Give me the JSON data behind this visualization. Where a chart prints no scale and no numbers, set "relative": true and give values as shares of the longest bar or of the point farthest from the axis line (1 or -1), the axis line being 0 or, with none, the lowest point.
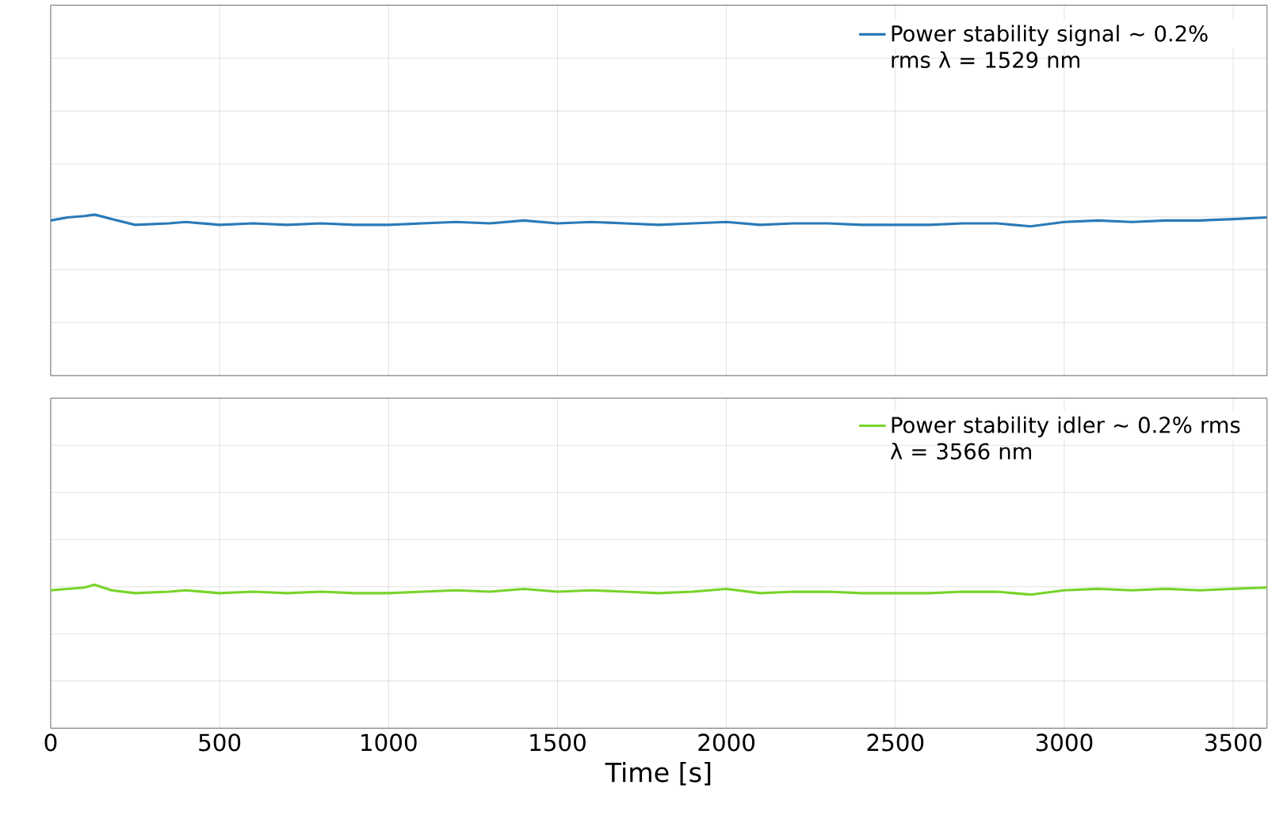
{
  "chart_data": [
    {
      "type": "line",
      "relative": true,
      "xlim": [
        0,
        3600
      ],
      "xticks": [
        0,
        500,
        1000,
        1500,
        2000,
        2500,
        3000,
        3500
      ],
      "grid": true,
      "legend": "top right",
      "tick_labels": false,
      "x": [
        0,
        50,
        100,
        130,
        180,
        250,
        350,
        400,
        500,
        600,
        700,
        800,
        900,
        1000,
        1100,
        1200,
        1300,
        1400,
        1500,
        1600,
        1700,
        1800,
        1900,
        2000,
        2100,
        2200,
        2300,
        2400,
        2500,
        2600,
        2700,
        2800,
        2900,
        3000,
        3100,
        3200,
        3300,
        3400,
        3500,
        3600
      ],
      "series": [
        {
          "name": "Power stability signal ∼ 0.2% rms λ = 1529 nm",
          "color": "#2a7ab8",
          "values": [
            0.963,
            0.982,
            0.991,
            1.0,
            0.972,
            0.936,
            0.945,
            0.954,
            0.936,
            0.945,
            0.936,
            0.945,
            0.936,
            0.936,
            0.945,
            0.954,
            0.945,
            0.963,
            0.945,
            0.954,
            0.945,
            0.936,
            0.945,
            0.954,
            0.936,
            0.945,
            0.945,
            0.936,
            0.936,
            0.936,
            0.945,
            0.945,
            0.927,
            0.954,
            0.963,
            0.954,
            0.963,
            0.963,
            0.972,
            0.982
          ]
        }
      ]
    },
    {
      "type": "line",
      "relative": true,
      "xlim": [
        0,
        3600
      ],
      "xticks": [
        0,
        500,
        1000,
        1500,
        2000,
        2500,
        3000,
        3500
      ],
      "grid": true,
      "legend": "top right",
      "tick_labels": "x",
      "xlabel": "Time [s]",
      "x": [
        0,
        50,
        100,
        130,
        180,
        250,
        350,
        400,
        500,
        600,
        700,
        800,
        900,
        1000,
        1100,
        1200,
        1300,
        1400,
        1500,
        1600,
        1700,
        1800,
        1900,
        2000,
        2100,
        2200,
        2300,
        2400,
        2500,
        2600,
        2700,
        2800,
        2900,
        3000,
        3100,
        3200,
        3300,
        3400,
        3500,
        3600
      ],
      "series": [
        {
          "name": "Power stability idler ∼ 0.2% rms λ = 3566 nm",
          "color": "#77d42a",
          "values": [
            0.961,
            0.971,
            0.98,
            1.0,
            0.961,
            0.941,
            0.951,
            0.961,
            0.941,
            0.951,
            0.941,
            0.951,
            0.941,
            0.941,
            0.951,
            0.961,
            0.951,
            0.971,
            0.951,
            0.961,
            0.951,
            0.941,
            0.951,
            0.971,
            0.941,
            0.951,
            0.951,
            0.941,
            0.941,
            0.941,
            0.951,
            0.951,
            0.931,
            0.961,
            0.971,
            0.961,
            0.971,
            0.961,
            0.971,
            0.98
          ]
        }
      ]
    }
  ]
}
